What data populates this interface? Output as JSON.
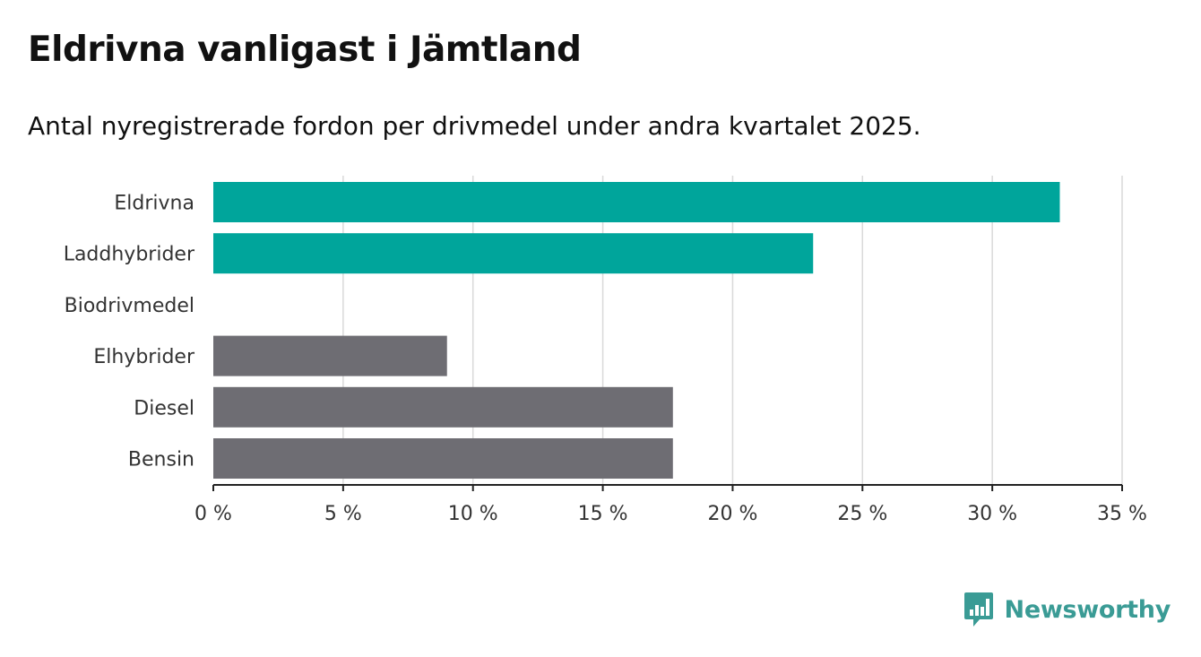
{
  "header": {
    "title": "Eldrivna vanligast i Jämtland",
    "subtitle": "Antal nyregistrerade fordon per drivmedel under andra kvartalet 2025."
  },
  "logo": {
    "text": "Newsworthy",
    "icon": "newsworthy-bar-chart-icon",
    "color": "#3a9b95"
  },
  "chart_data": {
    "type": "bar",
    "orientation": "horizontal",
    "categories": [
      "Eldrivna",
      "Laddhybrider",
      "Biodrivmedel",
      "Elhybrider",
      "Diesel",
      "Bensin"
    ],
    "values": [
      32.6,
      23.1,
      0,
      9.0,
      17.7,
      17.7
    ],
    "colors": [
      "#00a59b",
      "#00a59b",
      "#00a59b",
      "#6e6d73",
      "#6e6d73",
      "#6e6d73"
    ],
    "xlim": [
      0,
      35
    ],
    "xticks": [
      0,
      5,
      10,
      15,
      20,
      25,
      30,
      35
    ],
    "xtick_labels": [
      "0 %",
      "5 %",
      "10 %",
      "15 %",
      "20 %",
      "25 %",
      "30 %",
      "35 %"
    ],
    "grid": true,
    "xlabel": "",
    "ylabel": ""
  }
}
